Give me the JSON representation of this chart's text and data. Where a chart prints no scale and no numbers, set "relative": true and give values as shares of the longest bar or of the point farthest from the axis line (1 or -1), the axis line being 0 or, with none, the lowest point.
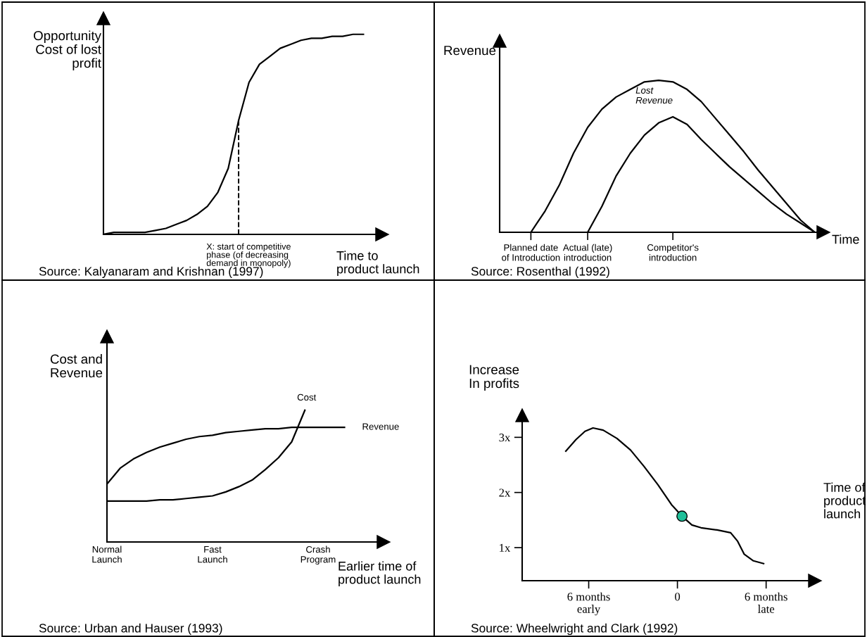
{
  "chart_data": [
    {
      "type": "line",
      "relative": true,
      "ylabel": "Opportunity\nCost of lost\nprofit",
      "xlabel": "Time to\nproduct launch",
      "categories": [
        null,
        null,
        null,
        null,
        null,
        null,
        null,
        null,
        null,
        null,
        null,
        null,
        null,
        null,
        null,
        null,
        null,
        null,
        null,
        null,
        null,
        null,
        null,
        null,
        null,
        null
      ],
      "series": [
        {
          "color": "#000000",
          "values": [
            0,
            0.01,
            0.01,
            0.01,
            0.01,
            0.02,
            0.03,
            0.05,
            0.07,
            0.1,
            0.14,
            0.21,
            0.33,
            0.57,
            0.76,
            0.85,
            0.89,
            0.93,
            0.95,
            0.97,
            0.98,
            0.98,
            0.99,
            0.99,
            1.0,
            1.0
          ]
        }
      ],
      "annotations": [
        "X: start of competitive\nphase (of decreasing\ndemand in monopoly)",
        "Source: Kalyanaram and Krishnan (1997)"
      ]
    },
    {
      "type": "line",
      "relative": true,
      "ylabel": "Revenue",
      "xlabel": "Time",
      "categories": [
        "Planned date\nof Introduction",
        null,
        null,
        null,
        "Actual (late)\nintroduction",
        null,
        null,
        null,
        null,
        null,
        "Competitor's\nintroduction",
        null,
        null,
        null,
        null,
        null,
        null,
        null,
        null,
        null,
        null
      ],
      "series": [
        {
          "color": "#000000",
          "values": [
            0,
            0.14,
            0.31,
            0.52,
            0.69,
            0.81,
            0.89,
            0.94,
            0.99,
            1.0,
            0.99,
            0.94,
            0.86,
            0.75,
            0.64,
            0.53,
            0.41,
            0.3,
            0.19,
            0.08,
            0
          ]
        },
        {
          "color": "#000000",
          "values": [
            null,
            null,
            null,
            null,
            0,
            0.17,
            0.37,
            0.52,
            0.64,
            0.72,
            0.76,
            0.71,
            0.61,
            0.52,
            0.43,
            0.35,
            0.27,
            0.19,
            0.12,
            0.06,
            0
          ]
        }
      ],
      "annotations": [
        "Lost\nRevenue",
        "Source: Rosenthal (1992)"
      ]
    },
    {
      "type": "line",
      "relative": true,
      "ylabel": "Cost and\nRevenue",
      "xlabel": "Earlier time of\nproduct launch",
      "categories": [
        "Normal\nLaunch",
        null,
        null,
        null,
        null,
        null,
        null,
        null,
        "Fast\nLaunch",
        null,
        null,
        null,
        null,
        null,
        null,
        null,
        "Crash\nProgram",
        null,
        null
      ],
      "series": [
        {
          "name": "Cost",
          "color": "#000000",
          "values": [
            0.31,
            0.31,
            0.31,
            0.31,
            0.32,
            0.32,
            0.33,
            0.34,
            0.35,
            0.38,
            0.42,
            0.47,
            0.55,
            0.64,
            0.76,
            1.0,
            null,
            null,
            null
          ]
        },
        {
          "name": "Revenue",
          "color": "#000000",
          "values": [
            0.44,
            0.56,
            0.63,
            0.68,
            0.72,
            0.75,
            0.78,
            0.8,
            0.81,
            0.83,
            0.84,
            0.85,
            0.86,
            0.86,
            0.87,
            0.87,
            0.87,
            0.87,
            0.87
          ]
        }
      ],
      "annotations": [
        "Source: Urban and Hauser (1993)"
      ]
    },
    {
      "type": "line",
      "ylabel": "Increase\nIn profits",
      "xlabel": "Time of\nproduct\nlaunch",
      "xlim": [
        -10.5,
        9.3
      ],
      "ylim": [
        0.4,
        3.4
      ],
      "xticks": [
        {
          "value": -6,
          "label": "6 months\nearly"
        },
        0,
        {
          "value": 6,
          "label": "6 months\nlate"
        }
      ],
      "yticks": [
        {
          "value": 1,
          "label": "1x"
        },
        {
          "value": 2,
          "label": "2x"
        },
        {
          "value": 3,
          "label": "3x"
        }
      ],
      "series": [
        {
          "color": "#000000",
          "x": [
            -7.55,
            -6.86,
            -6.25,
            -5.71,
            -5.02,
            -4.09,
            -3.17,
            -2.25,
            -1.32,
            -0.4,
            0.31,
            0.98,
            1.6,
            2.68,
            3.6,
            4.06,
            4.52,
            5.14,
            5.83
          ],
          "values": [
            2.75,
            2.96,
            3.11,
            3.17,
            3.13,
            2.98,
            2.77,
            2.47,
            2.14,
            1.78,
            1.57,
            1.41,
            1.36,
            1.32,
            1.27,
            1.12,
            0.88,
            0.76,
            0.71
          ]
        },
        {
          "type": "scatter",
          "color": "#1fbf99",
          "marker": "circle",
          "x": [
            0.31
          ],
          "values": [
            1.57
          ]
        }
      ],
      "annotations": [
        "Source: Wheelwright and Clark (1992)"
      ]
    }
  ]
}
